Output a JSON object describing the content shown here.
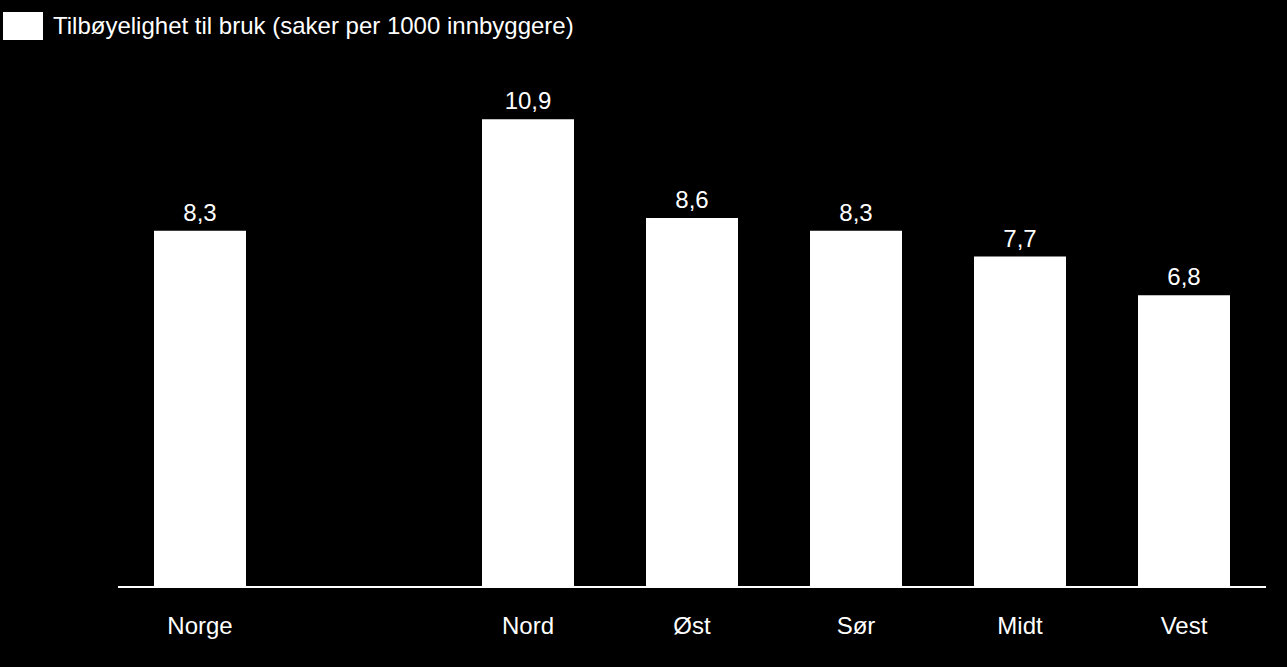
{
  "chart_data": {
    "type": "bar",
    "categories": [
      "Norge",
      null,
      "Nord",
      "Øst",
      "Sør",
      "Midt",
      "Vest"
    ],
    "series": [
      {
        "name": "Tilbøyelighet til bruk (saker per 1000 innbyggere)",
        "color": "#ffffff",
        "values": [
          8.3,
          null,
          10.9,
          8.6,
          8.3,
          7.7,
          6.8
        ],
        "value_labels": [
          "8,3",
          null,
          "10,9",
          "8,6",
          "8,3",
          "7,7",
          "6,8"
        ]
      }
    ],
    "ylim": [
      0,
      12
    ],
    "tick_labels": "x",
    "data_labels": true,
    "legend": "top-left",
    "grid": false
  }
}
